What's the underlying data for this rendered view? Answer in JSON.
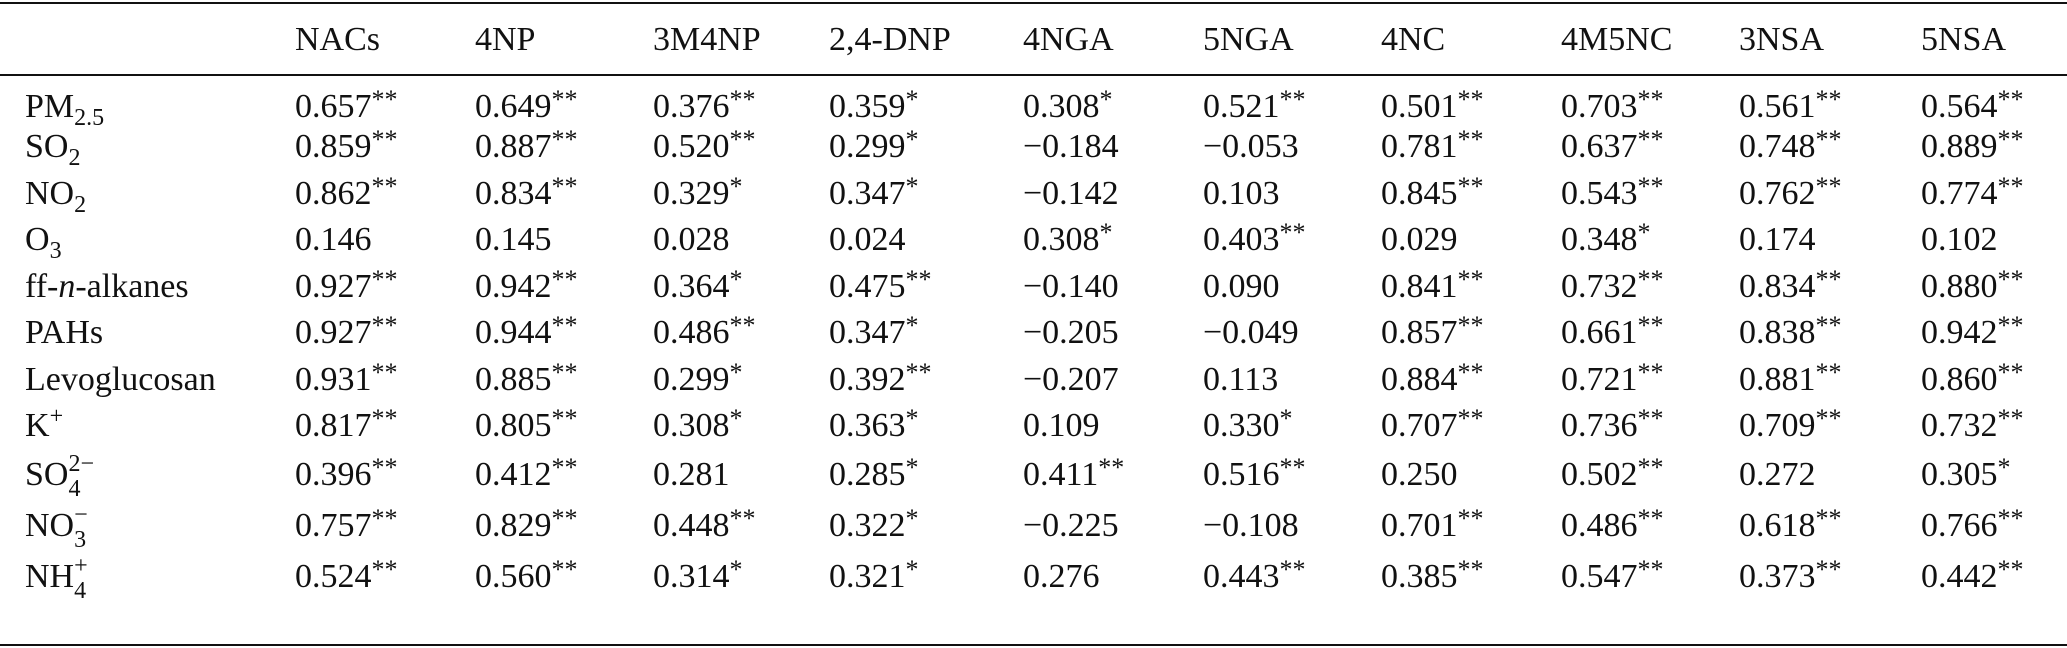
{
  "columns": [
    "NACs",
    "4NP",
    "3M4NP",
    "2,4-DNP",
    "4NGA",
    "5NGA",
    "4NC",
    "4M5NC",
    "3NSA",
    "5NSA"
  ],
  "rows": [
    {
      "name_main": "PM",
      "name_sub": "2.5",
      "cells": [
        {
          "v": "0.657",
          "s": "**"
        },
        {
          "v": "0.649",
          "s": "**"
        },
        {
          "v": "0.376",
          "s": "**"
        },
        {
          "v": "0.359",
          "s": "*"
        },
        {
          "v": "0.308",
          "s": "*"
        },
        {
          "v": "0.521",
          "s": "**"
        },
        {
          "v": "0.501",
          "s": "**"
        },
        {
          "v": "0.703",
          "s": "**"
        },
        {
          "v": "0.561",
          "s": "**"
        },
        {
          "v": "0.564",
          "s": "**"
        }
      ]
    },
    {
      "name_main": "SO",
      "name_sub": "2",
      "cells": [
        {
          "v": "0.859",
          "s": "**"
        },
        {
          "v": "0.887",
          "s": "**"
        },
        {
          "v": "0.520",
          "s": "**"
        },
        {
          "v": "0.299",
          "s": "*"
        },
        {
          "v": "−0.184",
          "s": ""
        },
        {
          "v": "−0.053",
          "s": ""
        },
        {
          "v": "0.781",
          "s": "**"
        },
        {
          "v": "0.637",
          "s": "**"
        },
        {
          "v": "0.748",
          "s": "**"
        },
        {
          "v": "0.889",
          "s": "**"
        }
      ]
    },
    {
      "name_main": "NO",
      "name_sub": "2",
      "cells": [
        {
          "v": "0.862",
          "s": "**"
        },
        {
          "v": "0.834",
          "s": "**"
        },
        {
          "v": "0.329",
          "s": "*"
        },
        {
          "v": "0.347",
          "s": "*"
        },
        {
          "v": "−0.142",
          "s": ""
        },
        {
          "v": "0.103",
          "s": ""
        },
        {
          "v": "0.845",
          "s": "**"
        },
        {
          "v": "0.543",
          "s": "**"
        },
        {
          "v": "0.762",
          "s": "**"
        },
        {
          "v": "0.774",
          "s": "**"
        }
      ]
    },
    {
      "name_main": "O",
      "name_sub": "3",
      "cells": [
        {
          "v": "0.146",
          "s": ""
        },
        {
          "v": "0.145",
          "s": ""
        },
        {
          "v": "0.028",
          "s": ""
        },
        {
          "v": "0.024",
          "s": ""
        },
        {
          "v": "0.308",
          "s": "*"
        },
        {
          "v": "0.403",
          "s": "**"
        },
        {
          "v": "0.029",
          "s": ""
        },
        {
          "v": "0.348",
          "s": "*"
        },
        {
          "v": "0.174",
          "s": ""
        },
        {
          "v": "0.102",
          "s": ""
        }
      ]
    },
    {
      "name_main": "ff-",
      "name_italic": "n",
      "name_tail": "-alkanes",
      "cells": [
        {
          "v": "0.927",
          "s": "**"
        },
        {
          "v": "0.942",
          "s": "**"
        },
        {
          "v": "0.364",
          "s": "*"
        },
        {
          "v": "0.475",
          "s": "**"
        },
        {
          "v": "−0.140",
          "s": ""
        },
        {
          "v": "0.090",
          "s": ""
        },
        {
          "v": "0.841",
          "s": "**"
        },
        {
          "v": "0.732",
          "s": "**"
        },
        {
          "v": "0.834",
          "s": "**"
        },
        {
          "v": "0.880",
          "s": "**"
        }
      ]
    },
    {
      "name_main": "PAHs",
      "cells": [
        {
          "v": "0.927",
          "s": "**"
        },
        {
          "v": "0.944",
          "s": "**"
        },
        {
          "v": "0.486",
          "s": "**"
        },
        {
          "v": "0.347",
          "s": "*"
        },
        {
          "v": "−0.205",
          "s": ""
        },
        {
          "v": "−0.049",
          "s": ""
        },
        {
          "v": "0.857",
          "s": "**"
        },
        {
          "v": "0.661",
          "s": "**"
        },
        {
          "v": "0.838",
          "s": "**"
        },
        {
          "v": "0.942",
          "s": "**"
        }
      ]
    },
    {
      "name_main": "Levoglucosan",
      "cells": [
        {
          "v": "0.931",
          "s": "**"
        },
        {
          "v": "0.885",
          "s": "**"
        },
        {
          "v": "0.299",
          "s": "*"
        },
        {
          "v": "0.392",
          "s": "**"
        },
        {
          "v": "−0.207",
          "s": ""
        },
        {
          "v": "0.113",
          "s": ""
        },
        {
          "v": "0.884",
          "s": "**"
        },
        {
          "v": "0.721",
          "s": "**"
        },
        {
          "v": "0.881",
          "s": "**"
        },
        {
          "v": "0.860",
          "s": "**"
        }
      ]
    },
    {
      "name_main": "K",
      "name_sup": "+",
      "cells": [
        {
          "v": "0.817",
          "s": "**"
        },
        {
          "v": "0.805",
          "s": "**"
        },
        {
          "v": "0.308",
          "s": "*"
        },
        {
          "v": "0.363",
          "s": "*"
        },
        {
          "v": "0.109",
          "s": ""
        },
        {
          "v": "0.330",
          "s": "*"
        },
        {
          "v": "0.707",
          "s": "**"
        },
        {
          "v": "0.736",
          "s": "**"
        },
        {
          "v": "0.709",
          "s": "**"
        },
        {
          "v": "0.732",
          "s": "**"
        }
      ]
    },
    {
      "name_main": "SO",
      "name_sub": "4",
      "name_sup": "2−",
      "cells": [
        {
          "v": "0.396",
          "s": "**"
        },
        {
          "v": "0.412",
          "s": "**"
        },
        {
          "v": "0.281",
          "s": ""
        },
        {
          "v": "0.285",
          "s": "*"
        },
        {
          "v": "0.411",
          "s": "**"
        },
        {
          "v": "0.516",
          "s": "**"
        },
        {
          "v": "0.250",
          "s": ""
        },
        {
          "v": "0.502",
          "s": "**"
        },
        {
          "v": "0.272",
          "s": ""
        },
        {
          "v": "0.305",
          "s": "*"
        }
      ]
    },
    {
      "name_main": "NO",
      "name_sub": "3",
      "name_sup": "−",
      "cells": [
        {
          "v": "0.757",
          "s": "**"
        },
        {
          "v": "0.829",
          "s": "**"
        },
        {
          "v": "0.448",
          "s": "**"
        },
        {
          "v": "0.322",
          "s": "*"
        },
        {
          "v": "−0.225",
          "s": ""
        },
        {
          "v": "−0.108",
          "s": ""
        },
        {
          "v": "0.701",
          "s": "**"
        },
        {
          "v": "0.486",
          "s": "**"
        },
        {
          "v": "0.618",
          "s": "**"
        },
        {
          "v": "0.766",
          "s": "**"
        }
      ]
    },
    {
      "name_main": "NH",
      "name_sub": "4",
      "name_sup": "+",
      "cells": [
        {
          "v": "0.524",
          "s": "**"
        },
        {
          "v": "0.560",
          "s": "**"
        },
        {
          "v": "0.314",
          "s": "*"
        },
        {
          "v": "0.321",
          "s": "*"
        },
        {
          "v": "0.276",
          "s": ""
        },
        {
          "v": "0.443",
          "s": "**"
        },
        {
          "v": "0.385",
          "s": "**"
        },
        {
          "v": "0.547",
          "s": "**"
        },
        {
          "v": "0.373",
          "s": "**"
        },
        {
          "v": "0.442",
          "s": "**"
        }
      ]
    }
  ]
}
